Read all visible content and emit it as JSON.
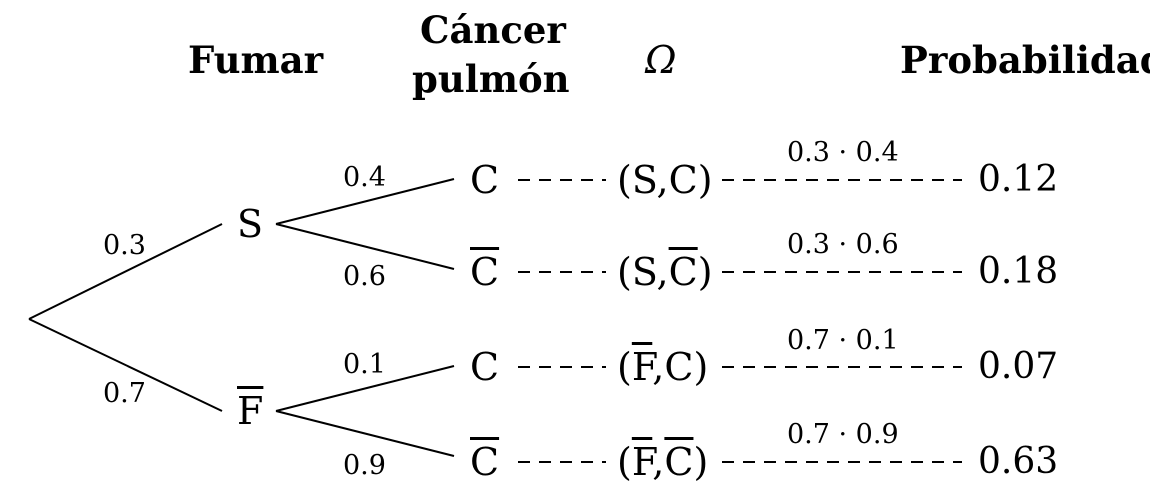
{
  "headers": {
    "fumar": "Fumar",
    "cancer_line1": "Cáncer",
    "cancer_line2": "pulmón",
    "omega": "Ω",
    "probabilidad": "Probabilidad"
  },
  "level1": {
    "branches": [
      {
        "node": "S",
        "overline": false,
        "prob": "0.3"
      },
      {
        "node": "F",
        "overline": true,
        "prob": "0.7"
      }
    ]
  },
  "level2": {
    "branches": [
      {
        "node": "C",
        "overline": false,
        "prob": "0.4"
      },
      {
        "node": "C",
        "overline": true,
        "prob": "0.6"
      },
      {
        "node": "C",
        "overline": false,
        "prob": "0.1"
      },
      {
        "node": "C",
        "overline": true,
        "prob": "0.9"
      }
    ]
  },
  "outcomes": [
    {
      "first": "S",
      "first_overline": false,
      "second": "C",
      "second_overline": false,
      "product": "0.3 · 0.4",
      "result": "0.12"
    },
    {
      "first": "S",
      "first_overline": false,
      "second": "C",
      "second_overline": true,
      "product": "0.3 · 0.6",
      "result": "0.18"
    },
    {
      "first": "F",
      "first_overline": true,
      "second": "C",
      "second_overline": false,
      "product": "0.7 · 0.1",
      "result": "0.07"
    },
    {
      "first": "F",
      "first_overline": true,
      "second": "C",
      "second_overline": true,
      "product": "0.7 · 0.9",
      "result": "0.63"
    }
  ],
  "punctuation": {
    "open": "(",
    "comma": ",",
    "close": ")"
  },
  "colors": {
    "ink": "#000000",
    "background": "#ffffff"
  }
}
